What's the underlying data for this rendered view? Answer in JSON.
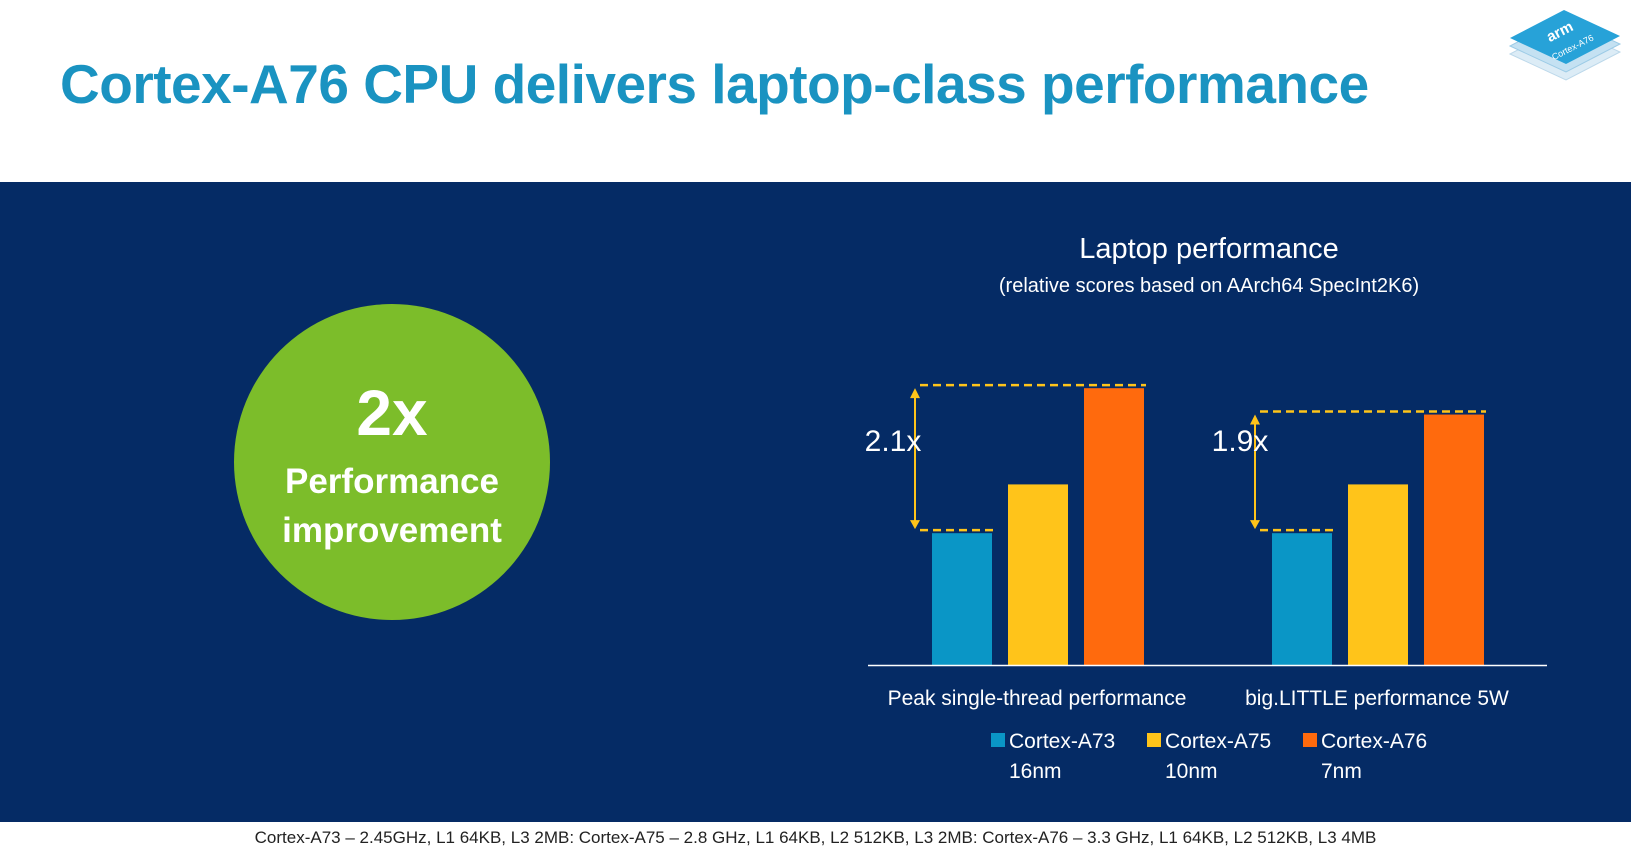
{
  "slide": {
    "title": "Cortex-A76 CPU delivers laptop-class performance",
    "logo_text": "arm",
    "logo_subtext": "Cortex-A76",
    "footer": "Cortex-A73 – 2.45GHz, L1 64KB, L3 2MB: Cortex-A75 – 2.8 GHz, L1 64KB, L2 512KB, L3 2MB: Cortex-A76 – 3.3 GHz, L1 64KB, L2 512KB, L3 4MB"
  },
  "callout": {
    "big": "2x",
    "line1": "Performance",
    "line2": "improvement"
  },
  "chart_data": {
    "type": "bar",
    "title": "Laptop performance",
    "subtitle": "(relative scores based on AArch64 SpecInt2K6)",
    "categories": [
      "Peak single-thread performance",
      "big.LITTLE performance 5W"
    ],
    "series": [
      {
        "name": "Cortex-A73",
        "name2": "16nm",
        "color": "#0a96c6",
        "values": [
          1.0,
          1.0
        ]
      },
      {
        "name": "Cortex-A75",
        "name2": "10nm",
        "color": "#ffc41a",
        "values": [
          1.37,
          1.37
        ]
      },
      {
        "name": "Cortex-A76",
        "name2": "7nm",
        "color": "#ff6a0d",
        "values": [
          2.1,
          1.9
        ]
      }
    ],
    "annotations": [
      "2.1x",
      "1.9x"
    ],
    "ylim": [
      0,
      2.2
    ],
    "grid": false,
    "legend": "bottom",
    "axis_color": "#ffffff",
    "marker_color": "#ffc41a"
  }
}
